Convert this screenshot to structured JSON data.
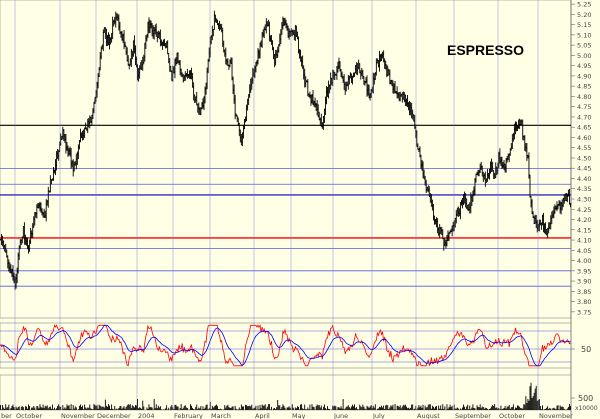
{
  "chart_data": [
    {
      "type": "candlestick",
      "title": "ESPRESSO",
      "ylim": [
        3.72,
        5.27
      ],
      "y_ticks": [
        "3.75",
        "3.80",
        "3.85",
        "3.90",
        "3.95",
        "4.00",
        "4.05",
        "4.10",
        "4.15",
        "4.20",
        "4.25",
        "4.30",
        "4.35",
        "4.40",
        "4.45",
        "4.50",
        "4.55",
        "4.60",
        "4.65",
        "4.70",
        "4.75",
        "4.80",
        "4.85",
        "4.90",
        "4.95",
        "5.00",
        "5.05",
        "5.10",
        "5.15",
        "5.20",
        "5.25"
      ],
      "months": [
        "ber",
        "October",
        "November",
        "December",
        "2004",
        "February",
        "March",
        "April",
        "May",
        "June",
        "July",
        "August",
        "September",
        "October",
        "November"
      ],
      "price_anchors": [
        [
          0,
          4.1
        ],
        [
          6,
          4.02
        ],
        [
          10,
          3.95
        ],
        [
          14,
          3.88
        ],
        [
          18,
          4.05
        ],
        [
          22,
          4.15
        ],
        [
          26,
          4.05
        ],
        [
          32,
          4.2
        ],
        [
          36,
          4.28
        ],
        [
          42,
          4.2
        ],
        [
          48,
          4.38
        ],
        [
          54,
          4.5
        ],
        [
          60,
          4.62
        ],
        [
          64,
          4.55
        ],
        [
          70,
          4.45
        ],
        [
          76,
          4.58
        ],
        [
          82,
          4.65
        ],
        [
          88,
          4.7
        ],
        [
          92,
          4.82
        ],
        [
          96,
          5.0
        ],
        [
          100,
          5.12
        ],
        [
          104,
          5.05
        ],
        [
          108,
          5.15
        ],
        [
          112,
          5.18
        ],
        [
          118,
          5.08
        ],
        [
          124,
          4.95
        ],
        [
          128,
          5.05
        ],
        [
          132,
          4.9
        ],
        [
          138,
          5.0
        ],
        [
          142,
          5.15
        ],
        [
          148,
          5.12
        ],
        [
          154,
          5.08
        ],
        [
          160,
          5.05
        ],
        [
          165,
          4.9
        ],
        [
          170,
          5.0
        ],
        [
          176,
          4.88
        ],
        [
          182,
          4.92
        ],
        [
          188,
          4.78
        ],
        [
          192,
          4.7
        ],
        [
          196,
          4.8
        ],
        [
          202,
          5.05
        ],
        [
          206,
          5.18
        ],
        [
          212,
          5.15
        ],
        [
          216,
          5.0
        ],
        [
          222,
          4.95
        ],
        [
          226,
          4.72
        ],
        [
          232,
          4.6
        ],
        [
          236,
          4.7
        ],
        [
          240,
          4.85
        ],
        [
          246,
          4.95
        ],
        [
          250,
          5.05
        ],
        [
          256,
          5.15
        ],
        [
          260,
          5.1
        ],
        [
          264,
          4.98
        ],
        [
          268,
          5.05
        ],
        [
          272,
          5.18
        ],
        [
          278,
          5.1
        ],
        [
          284,
          5.12
        ],
        [
          288,
          5.0
        ],
        [
          292,
          4.9
        ],
        [
          298,
          4.8
        ],
        [
          304,
          4.75
        ],
        [
          310,
          4.65
        ],
        [
          314,
          4.8
        ],
        [
          320,
          4.9
        ],
        [
          326,
          4.95
        ],
        [
          332,
          4.85
        ],
        [
          338,
          4.9
        ],
        [
          344,
          4.95
        ],
        [
          350,
          4.88
        ],
        [
          356,
          4.8
        ],
        [
          362,
          4.95
        ],
        [
          368,
          5.0
        ],
        [
          372,
          4.92
        ],
        [
          378,
          4.85
        ],
        [
          384,
          4.78
        ],
        [
          390,
          4.8
        ],
        [
          396,
          4.72
        ],
        [
          402,
          4.55
        ],
        [
          408,
          4.4
        ],
        [
          414,
          4.3
        ],
        [
          418,
          4.2
        ],
        [
          422,
          4.15
        ],
        [
          426,
          4.1
        ],
        [
          430,
          4.08
        ],
        [
          434,
          4.15
        ],
        [
          438,
          4.2
        ],
        [
          442,
          4.25
        ],
        [
          446,
          4.3
        ],
        [
          450,
          4.25
        ],
        [
          454,
          4.3
        ],
        [
          458,
          4.4
        ],
        [
          462,
          4.45
        ],
        [
          468,
          4.4
        ],
        [
          472,
          4.48
        ],
        [
          476,
          4.42
        ],
        [
          480,
          4.5
        ],
        [
          484,
          4.45
        ],
        [
          488,
          4.48
        ],
        [
          492,
          4.55
        ],
        [
          496,
          4.65
        ],
        [
          500,
          4.68
        ],
        [
          504,
          4.6
        ],
        [
          508,
          4.5
        ],
        [
          510,
          4.3
        ],
        [
          514,
          4.2
        ],
        [
          518,
          4.15
        ],
        [
          522,
          4.2
        ],
        [
          526,
          4.12
        ],
        [
          530,
          4.2
        ],
        [
          536,
          4.25
        ],
        [
          542,
          4.28
        ],
        [
          546,
          4.32
        ],
        [
          549,
          4.27
        ]
      ],
      "horizontal_lines": [
        {
          "value": 4.659,
          "color": "#000000",
          "width": 1.1
        },
        {
          "value": 4.448,
          "color": "#5a5ad8",
          "width": 0.8
        },
        {
          "value": 4.372,
          "color": "#5a5ad8",
          "width": 0.8
        },
        {
          "value": 4.32,
          "color": "#0000aa",
          "width": 1.1
        },
        {
          "value": 4.11,
          "color": "#ff0000",
          "width": 1.4
        },
        {
          "value": 4.058,
          "color": "#5a5ad8",
          "width": 0.8
        },
        {
          "value": 3.95,
          "color": "#5a5ad8",
          "width": 0.8
        },
        {
          "value": 3.875,
          "color": "#5a5ad8",
          "width": 0.8
        }
      ]
    },
    {
      "type": "line",
      "title": "",
      "y_tick": "50",
      "series_colors": [
        "#ff0000",
        "#0000ff"
      ]
    },
    {
      "type": "bar",
      "title": "",
      "y_tick": "500",
      "y_unit": "x10000"
    }
  ],
  "colors": {
    "background": "#ffffe6",
    "candle": "#000000",
    "oscillator_fast": "#ff0000",
    "oscillator_slow": "#0000ff",
    "volume": "#000000",
    "axis_text": "#444444"
  }
}
